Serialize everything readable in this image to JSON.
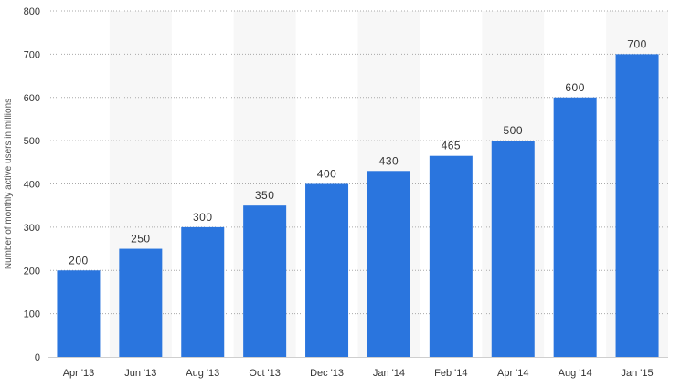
{
  "chart_data": {
    "type": "bar",
    "title": "",
    "xlabel": "",
    "ylabel": "Number of monthly active users in millions",
    "categories": [
      "Apr '13",
      "Jun '13",
      "Aug '13",
      "Oct '13",
      "Dec '13",
      "Jan '14",
      "Feb '14",
      "Apr '14",
      "Aug '14",
      "Jan '15"
    ],
    "values": [
      200,
      250,
      300,
      350,
      400,
      430,
      465,
      500,
      600,
      700
    ],
    "ylim": [
      0,
      800
    ],
    "yticks": [
      0,
      100,
      200,
      300,
      400,
      500,
      600,
      700,
      800
    ],
    "grid": true,
    "bar_color": "#2a75de",
    "alt_band_color": "#f7f7f7"
  }
}
